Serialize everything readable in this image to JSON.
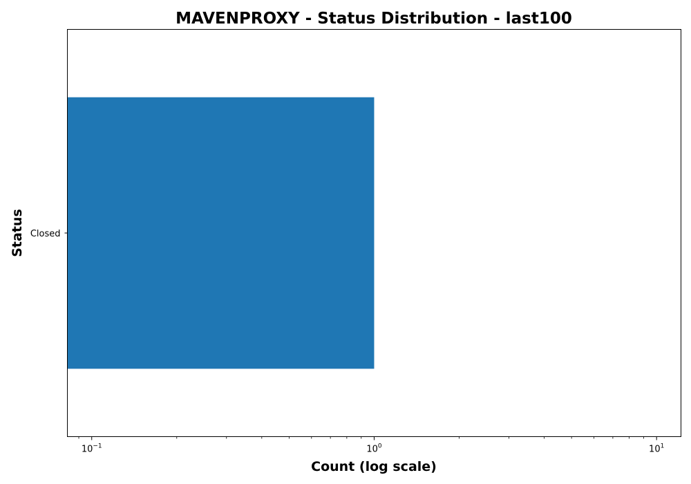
{
  "chart_data": {
    "type": "bar",
    "orientation": "horizontal",
    "title": "MAVENPROXY - Status Distribution - last100",
    "xlabel": "Count (log scale)",
    "ylabel": "Status",
    "xscale": "log",
    "xlim": [
      0.082,
      12.2
    ],
    "categories": [
      "Closed"
    ],
    "values": [
      1
    ],
    "x_ticks": [
      {
        "value": 0.1,
        "base": "10",
        "exp": "−1"
      },
      {
        "value": 1,
        "base": "10",
        "exp": "0"
      },
      {
        "value": 10,
        "base": "10",
        "exp": "1"
      }
    ],
    "bar_color": "#1f77b4",
    "grid": false,
    "legend": "none"
  }
}
